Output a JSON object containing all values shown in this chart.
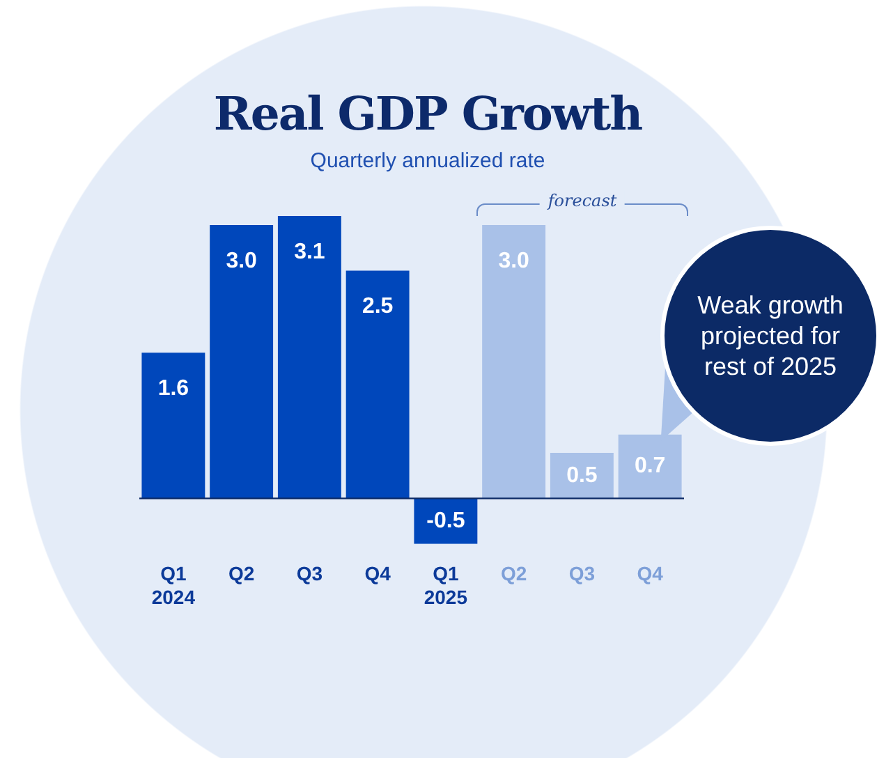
{
  "chart_data": {
    "type": "bar",
    "title": "Real GDP Growth",
    "subtitle": "Quarterly annualized rate",
    "categories": [
      "Q1\n2024",
      "Q2",
      "Q3",
      "Q4",
      "Q1\n2025",
      "Q2",
      "Q3",
      "Q4"
    ],
    "values": [
      1.6,
      3.0,
      3.1,
      2.5,
      -0.5,
      3.0,
      0.5,
      0.7
    ],
    "value_labels": [
      "1.6",
      "3.0",
      "3.1",
      "2.5",
      "-0.5",
      "3.0",
      "0.5",
      "0.7"
    ],
    "colors": [
      "#0047bb",
      "#0047bb",
      "#0047bb",
      "#0047bb",
      "#0047bb",
      "#a9c1e8",
      "#a9c1e8",
      "#a9c1e8"
    ],
    "annotations": [
      "forecast",
      "Weak growth projected for rest of 2025"
    ],
    "ref_lines": [
      {
        "axis": "y",
        "value": 0,
        "color": "#0c2a66"
      }
    ],
    "legend": false,
    "grid": false
  }
}
